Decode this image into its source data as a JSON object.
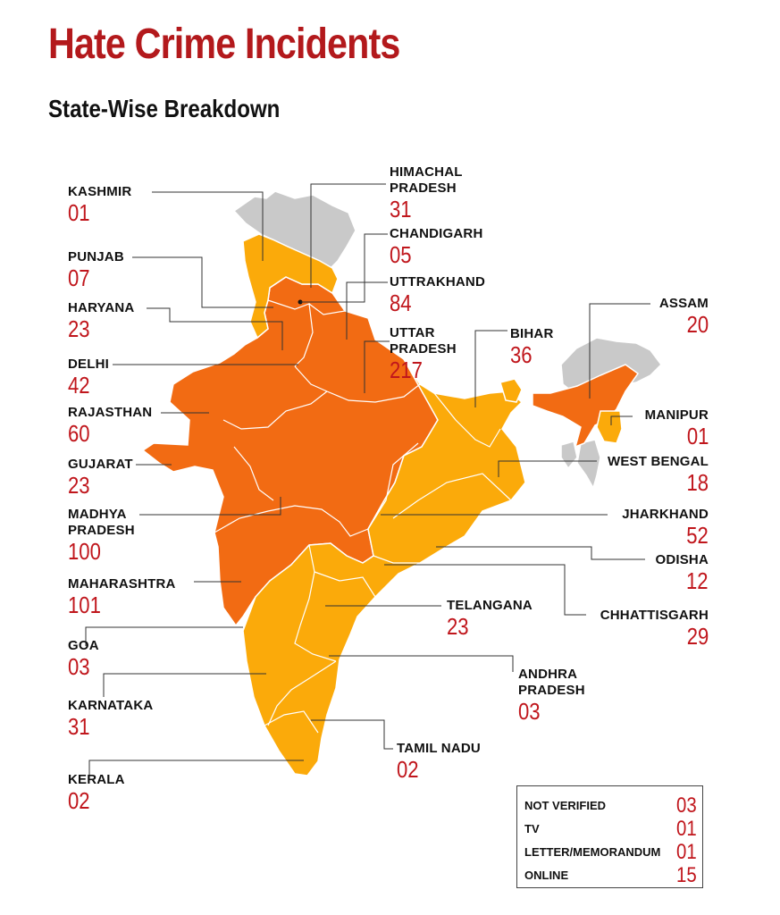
{
  "title": "Hate Crime Incidents",
  "subtitle": "State-Wise Breakdown",
  "colors": {
    "title": "#b3191c",
    "value": "#c0161c",
    "high": "#f26b13",
    "medium": "#fbaa0a",
    "none": "#c9c9c9",
    "leader": "#333333"
  },
  "states": [
    {
      "id": "kashmir",
      "name": "KASHMIR",
      "value": "01"
    },
    {
      "id": "punjab",
      "name": "PUNJAB",
      "value": "07"
    },
    {
      "id": "haryana",
      "name": "HARYANA",
      "value": "23"
    },
    {
      "id": "delhi",
      "name": "DELHI",
      "value": "42"
    },
    {
      "id": "rajasthan",
      "name": "RAJASTHAN",
      "value": "60"
    },
    {
      "id": "gujarat",
      "name": "GUJARAT",
      "value": "23"
    },
    {
      "id": "madhya-pradesh",
      "name": "MADHYA\nPRADESH",
      "value": "100"
    },
    {
      "id": "maharashtra",
      "name": "MAHARASHTRA",
      "value": "101"
    },
    {
      "id": "goa",
      "name": "GOA",
      "value": "03"
    },
    {
      "id": "karnataka",
      "name": "KARNATAKA",
      "value": "31"
    },
    {
      "id": "kerala",
      "name": "KERALA",
      "value": "02"
    },
    {
      "id": "himachal-pradesh",
      "name": "HIMACHAL\nPRADESH",
      "value": "31"
    },
    {
      "id": "chandigarh",
      "name": "CHANDIGARH",
      "value": "05"
    },
    {
      "id": "uttrakhand",
      "name": "UTTRAKHAND",
      "value": "84"
    },
    {
      "id": "uttar-pradesh",
      "name": "UTTAR\nPRADESH",
      "value": "217"
    },
    {
      "id": "bihar",
      "name": "BIHAR",
      "value": "36"
    },
    {
      "id": "assam",
      "name": "ASSAM",
      "value": "20"
    },
    {
      "id": "manipur",
      "name": "MANIPUR",
      "value": "01"
    },
    {
      "id": "west-bengal",
      "name": "WEST BENGAL",
      "value": "18"
    },
    {
      "id": "jharkhand",
      "name": "JHARKHAND",
      "value": "52"
    },
    {
      "id": "odisha",
      "name": "ODISHA",
      "value": "12"
    },
    {
      "id": "chhattisgarh",
      "name": "CHHATTISGARH",
      "value": "29"
    },
    {
      "id": "telangana",
      "name": "TELANGANA",
      "value": "23"
    },
    {
      "id": "andhra-pradesh",
      "name": "ANDHRA\nPRADESH",
      "value": "03"
    },
    {
      "id": "tamil-nadu",
      "name": "TAMIL NADU",
      "value": "02"
    }
  ],
  "legend": [
    {
      "label": "NOT VERIFIED",
      "value": "03"
    },
    {
      "label": "TV",
      "value": "01"
    },
    {
      "label": "LETTER/MEMORANDUM",
      "value": "01"
    },
    {
      "label": "ONLINE",
      "value": "15"
    }
  ]
}
